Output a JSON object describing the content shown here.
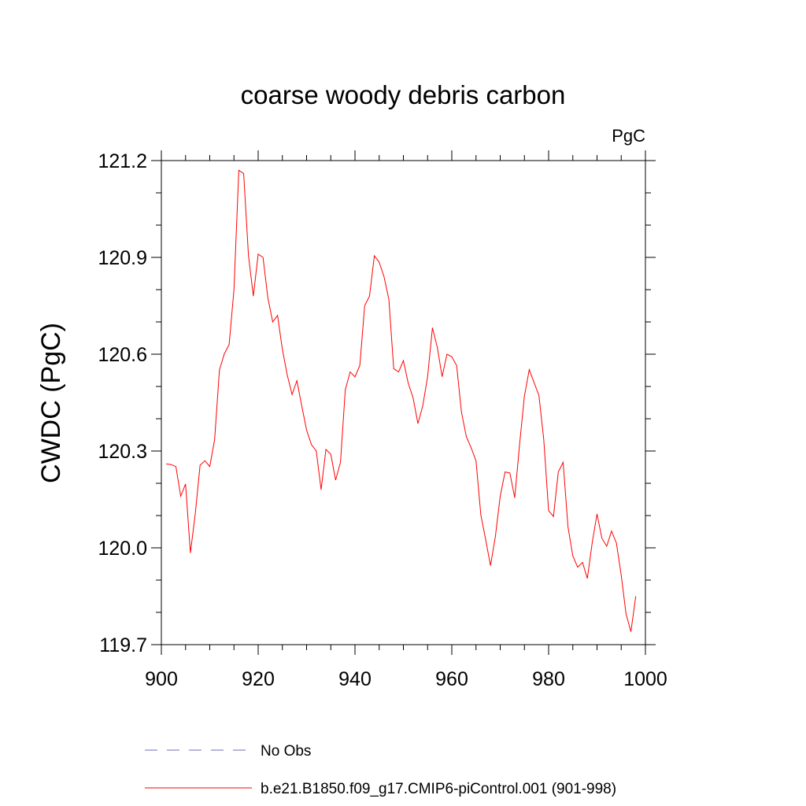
{
  "chart_data": {
    "type": "line",
    "title": "coarse woody debris carbon",
    "units_label": "PgC",
    "xlabel": "",
    "ylabel": "CWDC  (PgC)",
    "xlim": [
      900,
      1000
    ],
    "ylim": [
      119.7,
      121.2
    ],
    "x_ticks": [
      900,
      920,
      940,
      960,
      980,
      1000
    ],
    "x_tick_labels": [
      "900",
      "920",
      "940",
      "960",
      "980",
      "1000"
    ],
    "y_ticks": [
      119.7,
      120.0,
      120.3,
      120.6,
      120.9,
      121.2
    ],
    "y_tick_labels": [
      "119.7",
      "120.0",
      "120.3",
      "120.6",
      "120.9",
      "121.2"
    ],
    "grid": false,
    "legend_position": "bottom",
    "legend": [
      {
        "label": "No Obs",
        "color": "#6b6bb8",
        "style": "dashed"
      },
      {
        "label": "b.e21.B1850.f09_g17.CMIP6-piControl.001 (901-998)",
        "color": "#ff0000",
        "style": "solid"
      }
    ],
    "series": [
      {
        "name": "b.e21.B1850.f09_g17.CMIP6-piControl.001 (901-998)",
        "color": "#ff0000",
        "x": [
          901,
          902,
          903,
          904,
          905,
          906,
          907,
          908,
          909,
          910,
          911,
          912,
          913,
          914,
          915,
          916,
          917,
          918,
          919,
          920,
          921,
          922,
          923,
          924,
          925,
          926,
          927,
          928,
          929,
          930,
          931,
          932,
          933,
          934,
          935,
          936,
          937,
          938,
          939,
          940,
          941,
          942,
          943,
          944,
          945,
          946,
          947,
          948,
          949,
          950,
          951,
          952,
          953,
          954,
          955,
          956,
          957,
          958,
          959,
          960,
          961,
          962,
          963,
          964,
          965,
          966,
          967,
          968,
          969,
          970,
          971,
          972,
          973,
          974,
          975,
          976,
          977,
          978,
          979,
          980,
          981,
          982,
          983,
          984,
          985,
          986,
          987,
          988,
          989,
          990,
          991,
          992,
          993,
          994,
          995,
          996,
          997,
          998
        ],
        "y": [
          120.26,
          120.258,
          120.252,
          120.16,
          120.198,
          119.984,
          120.105,
          120.256,
          120.27,
          120.252,
          120.335,
          120.551,
          120.601,
          120.63,
          120.8,
          121.17,
          121.16,
          120.905,
          120.78,
          120.91,
          120.9,
          120.775,
          120.7,
          120.72,
          120.615,
          120.536,
          120.475,
          120.518,
          120.44,
          120.365,
          120.32,
          120.3,
          120.18,
          120.305,
          120.29,
          120.21,
          120.265,
          120.49,
          120.545,
          120.53,
          120.565,
          120.75,
          120.78,
          120.905,
          120.885,
          120.84,
          120.77,
          120.555,
          120.545,
          120.58,
          120.51,
          120.465,
          120.385,
          120.44,
          120.53,
          120.682,
          120.622,
          120.53,
          120.6,
          120.592,
          120.565,
          120.42,
          120.345,
          120.31,
          120.27,
          120.102,
          120.025,
          119.945,
          120.035,
          120.16,
          120.235,
          120.232,
          120.155,
          120.32,
          120.47,
          120.552,
          120.512,
          120.472,
          120.335,
          120.115,
          120.097,
          120.235,
          120.265,
          120.065,
          119.975,
          119.94,
          119.955,
          119.905,
          120.015,
          120.105,
          120.03,
          120.005,
          120.052,
          120.015,
          119.915,
          119.795,
          119.74,
          119.85
        ]
      }
    ]
  }
}
